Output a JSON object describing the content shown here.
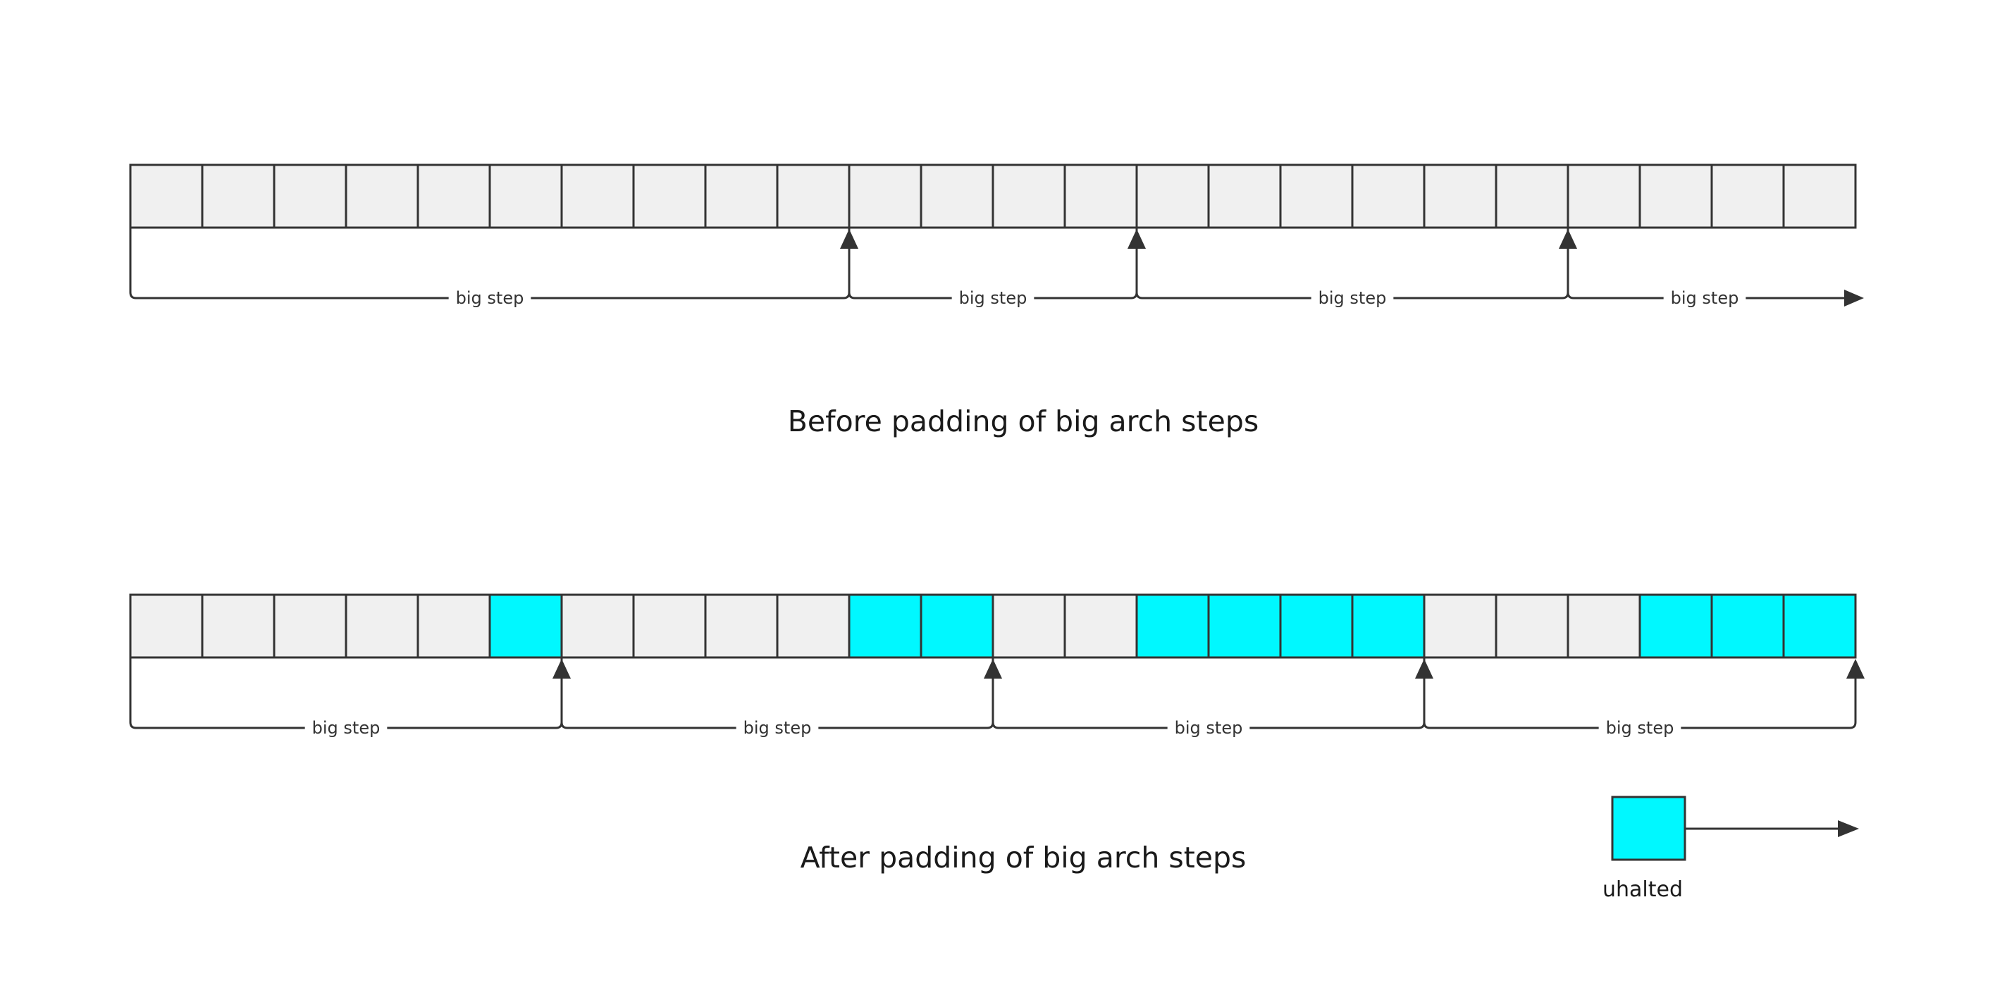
{
  "colors": {
    "cell_fill": "#f0f0f0",
    "halted_fill": "#00f8ff",
    "stroke": "#333333",
    "text": "#1a1a1a"
  },
  "before": {
    "caption": "Before padding of big arch steps",
    "cells": [
      "normal",
      "normal",
      "normal",
      "normal",
      "normal",
      "normal",
      "normal",
      "normal",
      "normal",
      "normal",
      "normal",
      "normal",
      "normal",
      "normal",
      "normal",
      "normal",
      "normal",
      "normal",
      "normal",
      "normal",
      "normal",
      "normal",
      "normal",
      "normal"
    ],
    "steps": [
      {
        "label": "big step",
        "from": 0,
        "to": 10
      },
      {
        "label": "big step",
        "from": 10,
        "to": 14
      },
      {
        "label": "big step",
        "from": 14,
        "to": 20
      },
      {
        "label": "big step",
        "from": 20,
        "to": 24,
        "open": true
      }
    ]
  },
  "after": {
    "caption": "After padding of big arch steps",
    "cells": [
      "normal",
      "normal",
      "normal",
      "normal",
      "normal",
      "halted",
      "normal",
      "normal",
      "normal",
      "normal",
      "halted",
      "halted",
      "normal",
      "normal",
      "halted",
      "halted",
      "halted",
      "halted",
      "normal",
      "normal",
      "normal",
      "halted",
      "halted",
      "halted"
    ],
    "steps": [
      {
        "label": "big step",
        "from": 0,
        "to": 6
      },
      {
        "label": "big step",
        "from": 6,
        "to": 12
      },
      {
        "label": "big step",
        "from": 12,
        "to": 18
      },
      {
        "label": "big step",
        "from": 18,
        "to": 24
      }
    ]
  },
  "legend": {
    "label": "uhalted",
    "swatch": "halted"
  }
}
